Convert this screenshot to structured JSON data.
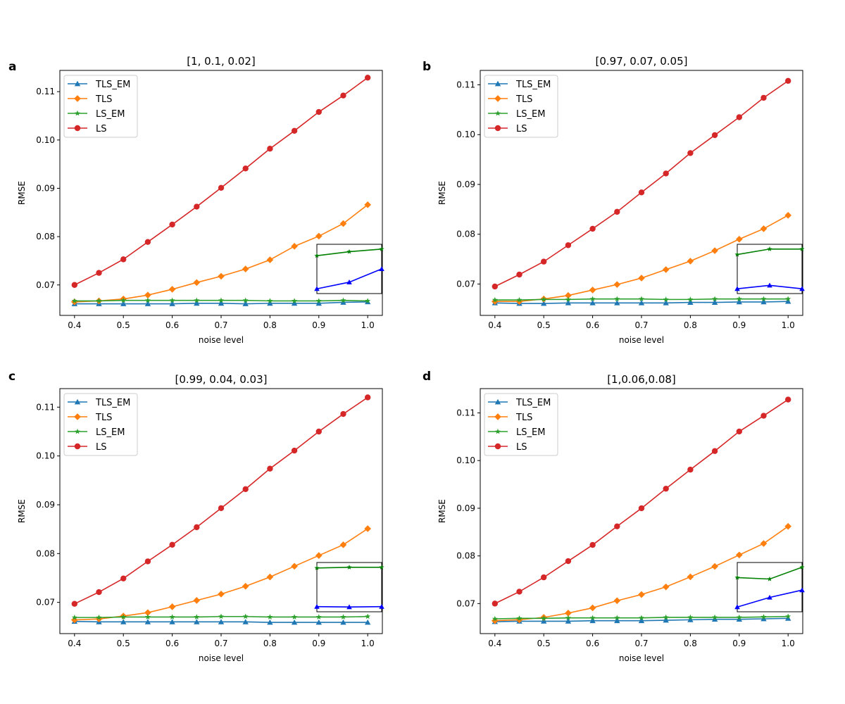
{
  "chart_data": [
    {
      "type": "line",
      "panel_label": "a",
      "title": "[1, 0.1, 0.02]",
      "xlabel": "noise level",
      "ylabel": "RMSE",
      "xlim": [
        0.37,
        1.03
      ],
      "ylim": [
        0.0637,
        0.1144
      ],
      "xticks": [
        "0.4",
        "0.5",
        "0.6",
        "0.7",
        "0.8",
        "0.9",
        "1.0"
      ],
      "yticks": [
        "0.07",
        "0.08",
        "0.09",
        "0.10",
        "0.11"
      ],
      "legend_position": "top-left",
      "x": [
        0.4,
        0.45,
        0.5,
        0.55,
        0.6,
        0.65,
        0.7,
        0.75,
        0.8,
        0.85,
        0.9,
        0.95,
        1.0
      ],
      "series": [
        {
          "name": "TLS_EM",
          "color": "#1f77b4",
          "marker": "triangle",
          "values": [
            0.0661,
            0.0661,
            0.0661,
            0.0661,
            0.0661,
            0.0662,
            0.0662,
            0.0661,
            0.0662,
            0.0662,
            0.0662,
            0.0664,
            0.0665
          ]
        },
        {
          "name": "TLS",
          "color": "#ff7f0e",
          "marker": "diamond",
          "values": [
            0.0665,
            0.0667,
            0.0671,
            0.0679,
            0.0691,
            0.0705,
            0.0718,
            0.0733,
            0.0752,
            0.078,
            0.0801,
            0.0827,
            0.0866
          ]
        },
        {
          "name": "LS_EM",
          "color": "#2ca02c",
          "marker": "star",
          "values": [
            0.0667,
            0.0667,
            0.0668,
            0.0668,
            0.0668,
            0.0668,
            0.0668,
            0.0668,
            0.0667,
            0.0667,
            0.0667,
            0.0668,
            0.0667
          ]
        },
        {
          "name": "LS",
          "color": "#d62728",
          "marker": "circle",
          "values": [
            0.07,
            0.0725,
            0.0753,
            0.0789,
            0.0825,
            0.0862,
            0.0901,
            0.0941,
            0.0982,
            0.1019,
            0.1058,
            0.1092,
            0.1129
          ]
        }
      ],
      "inset": {
        "x": [
          0.9,
          0.95,
          1.0
        ],
        "series": [
          {
            "color": "#0000ff",
            "marker": "triangle",
            "values": [
              0.0662,
              0.0663,
              0.0665
            ]
          },
          {
            "color": "#008000",
            "marker": "star",
            "values": [
              0.0667,
              0.06676,
              0.0668
            ]
          }
        ]
      }
    },
    {
      "type": "line",
      "panel_label": "b",
      "title": "[0.97, 0.07, 0.05]",
      "xlabel": "noise level",
      "ylabel": "RMSE",
      "xlim": [
        0.37,
        1.03
      ],
      "ylim": [
        0.0637,
        0.1129
      ],
      "xticks": [
        "0.4",
        "0.5",
        "0.6",
        "0.7",
        "0.8",
        "0.9",
        "1.0"
      ],
      "yticks": [
        "0.07",
        "0.08",
        "0.09",
        "0.10",
        "0.11"
      ],
      "legend_position": "top-left",
      "x": [
        0.4,
        0.45,
        0.5,
        0.55,
        0.6,
        0.65,
        0.7,
        0.75,
        0.8,
        0.85,
        0.9,
        0.95,
        1.0
      ],
      "series": [
        {
          "name": "TLS_EM",
          "color": "#1f77b4",
          "marker": "triangle",
          "values": [
            0.0662,
            0.0661,
            0.0661,
            0.0662,
            0.0662,
            0.0662,
            0.0662,
            0.0662,
            0.0663,
            0.0663,
            0.0664,
            0.0664,
            0.0665
          ]
        },
        {
          "name": "TLS",
          "color": "#ff7f0e",
          "marker": "diamond",
          "values": [
            0.0665,
            0.0665,
            0.067,
            0.0677,
            0.0688,
            0.0699,
            0.0712,
            0.0729,
            0.0746,
            0.0767,
            0.079,
            0.0811,
            0.0838
          ]
        },
        {
          "name": "LS_EM",
          "color": "#2ca02c",
          "marker": "star",
          "values": [
            0.0668,
            0.0668,
            0.0669,
            0.0669,
            0.067,
            0.067,
            0.067,
            0.0669,
            0.0669,
            0.067,
            0.067,
            0.067,
            0.067
          ]
        },
        {
          "name": "LS",
          "color": "#d62728",
          "marker": "circle",
          "values": [
            0.0695,
            0.0719,
            0.0745,
            0.0778,
            0.0811,
            0.0845,
            0.0884,
            0.0922,
            0.0963,
            0.0999,
            0.1035,
            0.1074,
            0.1108
          ]
        }
      ],
      "inset": {
        "x": [
          0.9,
          0.95,
          1.0
        ],
        "series": [
          {
            "color": "#0000ff",
            "marker": "triangle",
            "values": [
              0.0664,
              0.06645,
              0.0664
            ]
          },
          {
            "color": "#008000",
            "marker": "star",
            "values": [
              0.0669,
              0.06698,
              0.06698
            ]
          }
        ]
      }
    },
    {
      "type": "line",
      "panel_label": "c",
      "title": "[0.99, 0.04, 0.03]",
      "xlabel": "noise level",
      "ylabel": "RMSE",
      "xlim": [
        0.37,
        1.03
      ],
      "ylim": [
        0.0636,
        0.1138
      ],
      "xticks": [
        "0.4",
        "0.5",
        "0.6",
        "0.7",
        "0.8",
        "0.9",
        "1.0"
      ],
      "yticks": [
        "0.07",
        "0.08",
        "0.09",
        "0.10",
        "0.11"
      ],
      "legend_position": "top-left",
      "x": [
        0.4,
        0.45,
        0.5,
        0.55,
        0.6,
        0.65,
        0.7,
        0.75,
        0.8,
        0.85,
        0.9,
        0.95,
        1.0
      ],
      "series": [
        {
          "name": "TLS_EM",
          "color": "#1f77b4",
          "marker": "triangle",
          "values": [
            0.0661,
            0.066,
            0.066,
            0.066,
            0.066,
            0.066,
            0.066,
            0.066,
            0.0659,
            0.0659,
            0.0659,
            0.0659,
            0.0659
          ]
        },
        {
          "name": "TLS",
          "color": "#ff7f0e",
          "marker": "diamond",
          "values": [
            0.0664,
            0.0666,
            0.0672,
            0.0679,
            0.0691,
            0.0704,
            0.0717,
            0.0733,
            0.0752,
            0.0774,
            0.0796,
            0.0818,
            0.0851
          ]
        },
        {
          "name": "LS_EM",
          "color": "#2ca02c",
          "marker": "star",
          "values": [
            0.0669,
            0.0669,
            0.067,
            0.067,
            0.067,
            0.067,
            0.0671,
            0.0671,
            0.067,
            0.067,
            0.067,
            0.067,
            0.0671
          ]
        },
        {
          "name": "LS",
          "color": "#d62728",
          "marker": "circle",
          "values": [
            0.0697,
            0.0721,
            0.0749,
            0.0784,
            0.0818,
            0.0854,
            0.0893,
            0.0932,
            0.0974,
            0.1011,
            0.105,
            0.1086,
            0.112
          ]
        }
      ],
      "inset": {
        "x": [
          0.9,
          0.95,
          1.0
        ],
        "series": [
          {
            "color": "#0000ff",
            "marker": "triangle",
            "values": [
              0.06595,
              0.06594,
              0.06595
            ]
          },
          {
            "color": "#008000",
            "marker": "star",
            "values": [
              0.06702,
              0.06704,
              0.06704
            ]
          }
        ]
      }
    },
    {
      "type": "line",
      "panel_label": "d",
      "title": "[1,0.06,0.08]",
      "xlabel": "noise level",
      "ylabel": "RMSE",
      "xlim": [
        0.37,
        1.03
      ],
      "ylim": [
        0.0637,
        0.1151
      ],
      "xticks": [
        "0.4",
        "0.5",
        "0.6",
        "0.7",
        "0.8",
        "0.9",
        "1.0"
      ],
      "yticks": [
        "0.07",
        "0.08",
        "0.09",
        "0.10",
        "0.11"
      ],
      "legend_position": "top-left",
      "x": [
        0.4,
        0.45,
        0.5,
        0.55,
        0.6,
        0.65,
        0.7,
        0.75,
        0.8,
        0.85,
        0.9,
        0.95,
        1.0
      ],
      "series": [
        {
          "name": "TLS_EM",
          "color": "#1f77b4",
          "marker": "triangle",
          "values": [
            0.0662,
            0.0663,
            0.0663,
            0.0663,
            0.0664,
            0.0664,
            0.0664,
            0.0665,
            0.0666,
            0.0667,
            0.0667,
            0.0668,
            0.0669
          ]
        },
        {
          "name": "TLS",
          "color": "#ff7f0e",
          "marker": "diamond",
          "values": [
            0.0664,
            0.0666,
            0.0671,
            0.068,
            0.0691,
            0.0706,
            0.0719,
            0.0735,
            0.0756,
            0.0778,
            0.0802,
            0.0826,
            0.0862
          ]
        },
        {
          "name": "LS_EM",
          "color": "#2ca02c",
          "marker": "star",
          "values": [
            0.0668,
            0.0669,
            0.0669,
            0.067,
            0.067,
            0.067,
            0.067,
            0.0671,
            0.0671,
            0.0671,
            0.0671,
            0.0672,
            0.0673
          ]
        },
        {
          "name": "LS",
          "color": "#d62728",
          "marker": "circle",
          "values": [
            0.07,
            0.0725,
            0.0755,
            0.0789,
            0.0823,
            0.0862,
            0.09,
            0.0941,
            0.0981,
            0.102,
            0.1061,
            0.1094,
            0.1128
          ]
        }
      ],
      "inset": {
        "x": [
          0.9,
          0.95,
          1.0
        ],
        "series": [
          {
            "color": "#0000ff",
            "marker": "triangle",
            "values": [
              0.0667,
              0.06683,
              0.06693
            ]
          },
          {
            "color": "#008000",
            "marker": "star",
            "values": [
              0.0671,
              0.06708,
              0.06724
            ]
          }
        ]
      }
    }
  ]
}
